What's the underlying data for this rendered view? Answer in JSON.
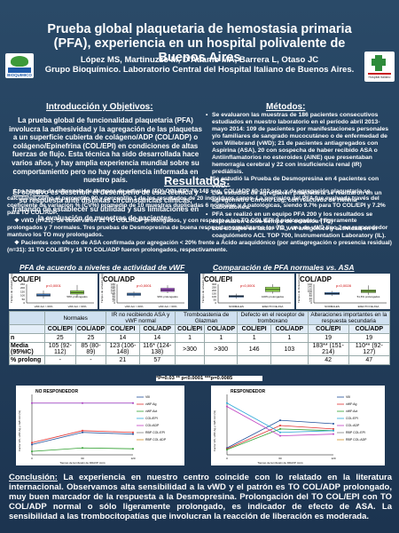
{
  "title": "Prueba global plaquetaria de hemostasia primaria (PFA), experiencia en un hospital polivalente de Buenos Aires",
  "authors": "López MS, Martinuzzo M, D'Adamo MA, Barrera L, Otaso JC",
  "affiliation": "Grupo Bioquímico. Laboratorio Central del Hospital Italiano de Buenos Aires.",
  "logo_left_text": "BIOQUIMICO",
  "logo_right_text": "Hospital Italiano",
  "intro": {
    "heading": "Introducción y Objetivos:",
    "p1": "La prueba global de funcionalidad plaquetaria (PFA) involucra la adhesividad y la agregación de las plaquetas a un superficie cubierta de colágeno/ADP (COL/ADP) o colágeno/Epinefrina (COL/EPI) en condiciones de altas fuerzas de flujo. Esta técnica ha sido desarrollada hace varios años, y hay amplia experiencia mundial sobre su comportamiento pero no hay experiencia informada en nuestro país.",
    "p2_label": "El objetivo",
    "p2": " es describir el desempeño de esta técnica y su respuesta ante distintas circunstancias clínicas, tratando de establecer su utilidad y sus limitaciones en la evaluación de muestras de pacientes."
  },
  "methods": {
    "heading": "Métodos:",
    "items": [
      "Se evaluaron las muestras de 186 pacientes consecutivos estudiados en nuestro laboratorio en el período abril 2013- mayo 2014: 109 de pacientes por manifestaciones personales y/o familiares de sangrado mucocutáneo o de enfermedad de von Willebrand (vWD); 21 de pacientes antiagregados con Aspirina (ASA), 20 con sospecha de haber recibido ASA o Antiinflamatorios no esteroides (AINE) que presentaban hemorragia cerebral y 22 con insuficiencia renal (IR) prediálisis.",
      "Se estudió la Prueba de Desmopresina en 4 pacientes con vWD.",
      "Los estudios de agregación plaquetaria se realizaron en un agregómetro Chrono Log, con reactivos de Helena Laboratories.",
      "PFA se realizó en un equipo PFA 200 y los resultados se expresaron como tiempo de oclusión (TO)",
      "Los dosajes de factor VIII, vW antigénico y actividad en el coagulómetro ACL TOP 700, Instrumentation Laboratory (IL)."
    ]
  },
  "results": {
    "heading": "Resultados:",
    "p1": "Los rangos de referencia de tiempos de oclusión (TO) COL/EPI 70-148 seg, COL/ADP 60-102 seg, y de agregación plaquetaria se calcularon como el percentilo 90 y percentilo 1 de los resultados de 20 individuos sanos. La precisión del PFA fue evaluada través del coeficiente de variación % (CV%) promedio de 10 muestras duplicadas 6 normales y 4 patológicas, siendo 9.7% para TO COL/EPI y 7.2% para TO COL/ADP.",
    "p2": "vWD (n=21): Se observaron 21 TO COL/ADP prolongados, y con respecto a los TO COL/EPI 9 prolongados, 4 ligeramente prolongados y 7 normales. Tres pruebas de Desmopresina de buena respuesta normalizaron los TO y una de vWD tipo 2 no respondedor mantuvo los TO muy prolongados.",
    "p3": "Pacientes con efecto de ASA confirmada por agregación < 20% frente a Ácido araquidónico (por antiagregación o presencia residual) (n=31): 31 TO COL/EPI y 16 TO COL/ADP fueron prolongados, respectivamente."
  },
  "chart_headers": {
    "vwf": "PFA de acuerdo a niveles de actividad de vWF",
    "asa": "Comparación de PFA normales vs. ASA"
  },
  "charts": [
    {
      "title": "COL/EPI",
      "pvalue": "p<0,0001",
      "ylabel": "Tiempo de oclusión (seg)",
      "yticks": [
        "0",
        "50",
        "100",
        "150",
        "200",
        "250"
      ],
      "xlabels": [
        "vWF:Act > 60%",
        "vWF:Act < 60%"
      ],
      "note": "59% prolongados",
      "chart_data": {
        "type": "box",
        "categories": [
          "vWF:Act > 60%",
          "vWF:Act < 60%"
        ],
        "medians": [
          105,
          140
        ],
        "q1": [
          90,
          118
        ],
        "q3": [
          122,
          165
        ],
        "min": [
          60,
          85
        ],
        "max": [
          165,
          240
        ],
        "ylim": [
          0,
          250
        ],
        "colors": [
          "#4f8ed8",
          "#8fd14f"
        ]
      }
    },
    {
      "title": "COL/ADP",
      "pvalue": "p<0,0001",
      "ylabel": "Tiempo de oclusión (seg)",
      "yticks": [
        "0",
        "20",
        "40",
        "60",
        "80",
        "100",
        "120",
        "140",
        "160",
        "180"
      ],
      "xlabels": [
        "vWF:Act > 60%",
        "vWF:Act < 60%"
      ],
      "note": "90% prolongados",
      "chart_data": {
        "type": "box",
        "categories": [
          "vWF:Act > 60%",
          "vWF:Act < 60%"
        ],
        "medians": [
          85,
          125
        ],
        "q1": [
          72,
          110
        ],
        "q3": [
          95,
          142
        ],
        "min": [
          55,
          95
        ],
        "max": [
          110,
          170
        ],
        "ylim": [
          0,
          180
        ],
        "colors": [
          "#4f8ed8",
          "#a050c8"
        ]
      }
    },
    {
      "title": "COL/EPI",
      "pvalue": "p<0,0001",
      "ylabel": "Tiempo de oclusión (seg)",
      "yticks": [
        "0",
        "50",
        "100",
        "150",
        "200",
        "250",
        "300"
      ],
      "xlabels": [
        "NORMALES",
        "EFECTO DE ASA"
      ],
      "note": "100% prolongados",
      "chart_data": {
        "type": "box",
        "categories": [
          "NORMALES",
          "EFECTO DE ASA"
        ],
        "medians": [
          105,
          215
        ],
        "q1": [
          92,
          180
        ],
        "q3": [
          120,
          255
        ],
        "min": [
          70,
          150
        ],
        "max": [
          148,
          300
        ],
        "ylim": [
          0,
          300
        ],
        "colors": [
          "#4f8ed8",
          "#8fd14f"
        ]
      }
    },
    {
      "title": "COL/ADP",
      "pvalue": "p=0,0028",
      "ylabel": "Tiempo de Oclusión (seg)",
      "yticks": [
        "0",
        "20",
        "40",
        "60",
        "80",
        "100",
        "120",
        "140",
        "160"
      ],
      "xlabels": [
        "NORMALES",
        "EFECTO DE ASA"
      ],
      "note": "51,6% prolongados",
      "chart_data": {
        "type": "box",
        "categories": [
          "NORMALES",
          "EFECTO DE ASA"
        ],
        "medians": [
          80,
          100
        ],
        "q1": [
          72,
          88
        ],
        "q3": [
          90,
          112
        ],
        "min": [
          60,
          70
        ],
        "max": [
          102,
          150
        ],
        "ylim": [
          0,
          160
        ],
        "colors": [
          "#4f8ed8",
          "#8fd14f"
        ]
      }
    }
  ],
  "table": {
    "groups": [
      "Normales",
      "IR no recibiendo ASA y vWF normal",
      "Tromboastenia de Glazman",
      "Defecto en el receptor de tromboxano",
      "Alteraciones importantes en la respuesta secundaria"
    ],
    "sub": [
      "COL/EPI",
      "COL/ADP",
      "COL/EPI",
      "COL/ADP",
      "COL/EPI",
      "COL/ADP",
      "COL/EPI",
      "COL/ADP",
      "COL/EPI",
      "COL/ADP"
    ],
    "rows": [
      {
        "label": "n",
        "cells": [
          "25",
          "25",
          "14",
          "14",
          "1",
          "1",
          "1",
          "1",
          "19",
          "19"
        ]
      },
      {
        "label": "Media (95%IC)",
        "cells": [
          "105 (92-112)",
          "85 (80-89)",
          "123 (106-148)",
          "116* (124-138)",
          ">300",
          ">300",
          "146",
          "103",
          "183** (151-214)",
          "110** (92-127)"
        ]
      },
      {
        "label": "% prolong",
        "cells": [
          "-",
          "-",
          "21",
          "57",
          "",
          "",
          "",
          "",
          "42",
          "47"
        ]
      }
    ],
    "pnote": "*P=0.03 ** p<0.0001 ***p=0.0085"
  },
  "tc_plots": [
    {
      "title": "NO RESPONDEDOR",
      "ylabel": "Factor VIII, vWF Ag y vWF:Act (%)",
      "xlabel": "Tiempo de la infusión de DDAVP (min)",
      "legend": [
        "VIII",
        "vWF:Ag",
        "vWF:Act",
        "COL/EPI",
        "COL/ADP",
        "RBP COL:EPI",
        "RBP COL ADP"
      ],
      "chart_data": {
        "type": "line",
        "x": [
          0,
          60,
          120
        ],
        "series": [
          {
            "name": "VIII",
            "values": [
              60,
              130,
              120
            ]
          },
          {
            "name": "vWF:Ag",
            "values": [
              70,
              140,
              130
            ]
          },
          {
            "name": "vWF:Act",
            "values": [
              20,
              40,
              35
            ]
          },
          {
            "name": "COL/EPI",
            "values": [
              300,
              300,
              300
            ]
          },
          {
            "name": "COL/ADP",
            "values": [
              300,
              300,
              300
            ]
          }
        ],
        "ylim": [
          0,
          350
        ],
        "xticks": [
          "0",
          "60",
          "120"
        ]
      }
    },
    {
      "title": "RESPONDEDOR",
      "ylabel": "Factor VIII, vWF Ag y vWF:Act (%)",
      "xlabel": "Tiempo de la infusión de DDAVP (min)",
      "legend": [
        "VIII",
        "vWF:Ag",
        "vWF:Act",
        "COL:EPI",
        "COL:ADP",
        "RBP COL:EPI",
        "RBP COL:ADP"
      ],
      "chart_data": {
        "type": "line",
        "x": [
          0,
          60,
          120
        ],
        "series": [
          {
            "name": "VIII",
            "values": [
              40,
              200,
              180
            ]
          },
          {
            "name": "vWF:Ag",
            "values": [
              35,
              170,
              150
            ]
          },
          {
            "name": "vWF:Act",
            "values": [
              30,
              150,
              140
            ]
          },
          {
            "name": "COL:EPI",
            "values": [
              300,
              130,
              140
            ]
          },
          {
            "name": "COL:ADP",
            "values": [
              280,
              110,
              120
            ]
          }
        ],
        "ylim": [
          0,
          350
        ],
        "xticks": [
          "0",
          "60",
          "120"
        ]
      }
    }
  ],
  "conclusion": {
    "label": "Conclusión:",
    "text": " La experiencia en nuestro centro coincide con lo relatado en la literatura internacional. Observamos alta sensibilidad a la vWD y el patrón es TO COL/ADP prolongado, muy buen marcador de la respuesta a la Desmopresina. Prolongación del TO COL/EPI con TO COL/ADP normal o sólo ligeramente prolongado, es indicador de efecto de ASA. La sensibilidad a las trombocitopatías que involucran la reacción de liberación es moderada."
  }
}
